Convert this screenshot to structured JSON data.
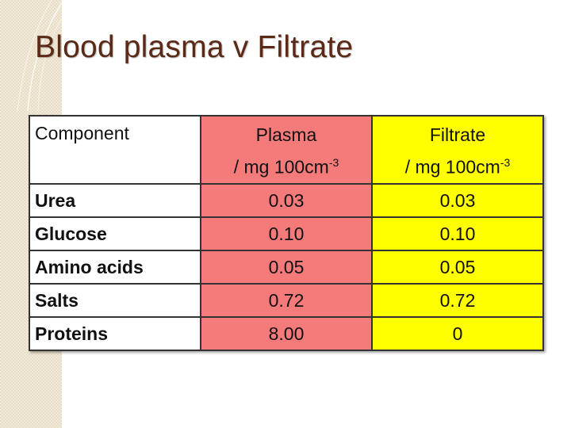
{
  "slide": {
    "title": "Blood plasma v Filtrate"
  },
  "table": {
    "headers": {
      "component": "Component",
      "plasma_line1": "Plasma",
      "plasma_line2": "/ mg 100cm",
      "plasma_exp": "-3",
      "filtrate_line1": "Filtrate",
      "filtrate_line2": "/ mg 100cm",
      "filtrate_exp": "-3"
    },
    "rows": [
      {
        "component": "Urea",
        "plasma": "0.03",
        "filtrate": "0.03"
      },
      {
        "component": "Glucose",
        "plasma": "0.10",
        "filtrate": "0.10"
      },
      {
        "component": "Amino acids",
        "plasma": "0.05",
        "filtrate": "0.05"
      },
      {
        "component": "Salts",
        "plasma": "0.72",
        "filtrate": "0.72"
      },
      {
        "component": "Proteins",
        "plasma": "8.00",
        "filtrate": "0"
      }
    ]
  },
  "colors": {
    "plasma_column": "#f57b7b",
    "filtrate_column": "#ffff00",
    "title_text": "#5a2a16"
  }
}
